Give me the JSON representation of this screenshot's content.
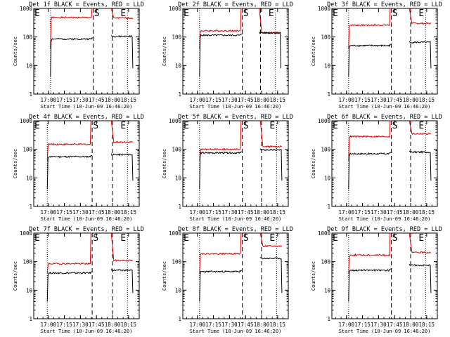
{
  "chart_data": {
    "type": "line",
    "y_scale": "log",
    "ylim": [
      1,
      1000
    ],
    "y_ticks": [
      "1",
      "10",
      "100",
      "1000"
    ],
    "xlim": [
      "16:46:20",
      "18:25"
    ],
    "x_ticks": [
      "17:00",
      "17:15",
      "17:30",
      "17:45",
      "18:00",
      "18:15"
    ],
    "xlabel": "Start Time (10-Jun-09 16:46:20)",
    "ylabel": "Counts/sec",
    "series_colors": {
      "events": "#000000",
      "lld": "#dd0000"
    },
    "markers": [
      "E",
      "S",
      "E"
    ],
    "panels": [
      {
        "title": "Det 1f BLACK = Events, RED = LLD",
        "lld_level": 480,
        "lld_peak": 1000,
        "lld_after": 460,
        "events_level": 85,
        "events_after": 105,
        "dip": 4,
        "vlines": [
          "17:02",
          "17:42",
          "18:00",
          "18:14"
        ]
      },
      {
        "title": "Det 2f BLACK = Events, RED = LLD",
        "lld_level": 165,
        "lld_peak": 1000,
        "lld_after": 140,
        "events_level": 115,
        "events_after": 140,
        "dip": 4,
        "vlines": [
          "17:02",
          "17:42",
          "17:59",
          "18:13"
        ]
      },
      {
        "title": "Det 3f BLACK = Events, RED = LLD",
        "lld_level": 260,
        "lld_peak": 1000,
        "lld_after": 300,
        "events_level": 50,
        "events_after": 65,
        "dip": 4,
        "vlines": [
          "17:02",
          "17:42",
          "18:00",
          "18:14"
        ]
      },
      {
        "title": "Det 4f BLACK = Events, RED = LLD",
        "lld_level": 150,
        "lld_peak": 1000,
        "lld_after": 180,
        "events_level": 55,
        "events_after": 65,
        "dip": 4,
        "vlines": [
          "16:59",
          "17:41",
          "18:00",
          "18:14"
        ]
      },
      {
        "title": "Det 5f BLACK = Events, RED = LLD",
        "lld_level": 100,
        "lld_peak": 1000,
        "lld_after": 125,
        "events_level": 75,
        "events_after": 95,
        "dip": 4,
        "vlines": [
          "17:02",
          "17:42",
          "18:00",
          "18:14"
        ]
      },
      {
        "title": "Det 6f BLACK = Events, RED = LLD",
        "lld_level": 280,
        "lld_peak": 1000,
        "lld_after": 350,
        "events_level": 70,
        "events_after": 80,
        "dip": 4,
        "vlines": [
          "17:02",
          "17:42",
          "18:00",
          "18:14"
        ]
      },
      {
        "title": "Det 7f BLACK = Events, RED = LLD",
        "lld_level": 85,
        "lld_peak": 1000,
        "lld_after": 110,
        "events_level": 40,
        "events_after": 50,
        "dip": 4,
        "vlines": [
          "16:59",
          "17:41",
          "18:00",
          "18:14"
        ]
      },
      {
        "title": "Det 8f BLACK = Events, RED = LLD",
        "lld_level": 190,
        "lld_peak": 1000,
        "lld_after": 350,
        "events_level": 45,
        "events_after": 130,
        "dip": 4,
        "vlines": [
          "17:02",
          "17:42",
          "18:00",
          "18:14"
        ]
      },
      {
        "title": "Det 9f BLACK = Events, RED = LLD",
        "lld_level": 170,
        "lld_peak": 1000,
        "lld_after": 210,
        "events_level": 50,
        "events_after": 75,
        "dip": 4,
        "vlines": [
          "17:02",
          "17:42",
          "18:00",
          "18:14"
        ]
      }
    ]
  }
}
